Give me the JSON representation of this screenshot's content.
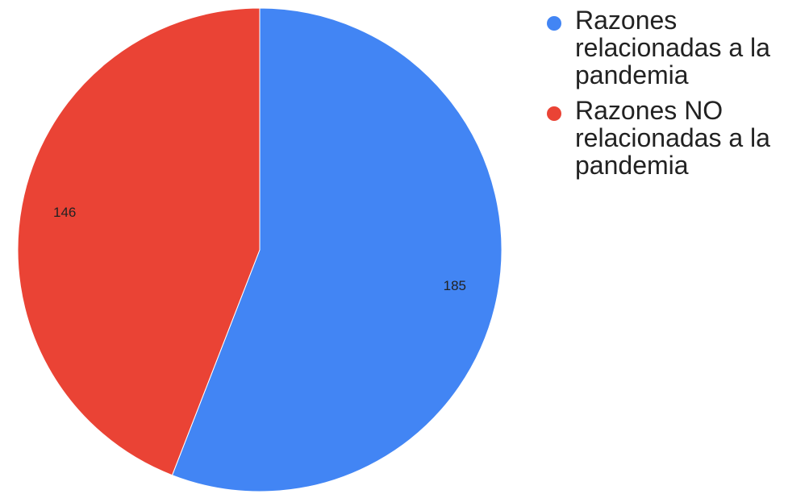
{
  "chart_data": {
    "type": "pie",
    "title": "",
    "legend_position": "right",
    "slices": [
      {
        "label": "Razones\nrelacionadas a la\npandemia",
        "value": 185,
        "value_label": "185",
        "color": "#4285F4"
      },
      {
        "label": "Razones NO\nrelacionadas a la\npandemia",
        "value": 146,
        "value_label": "146",
        "color": "#EA4335"
      }
    ]
  }
}
